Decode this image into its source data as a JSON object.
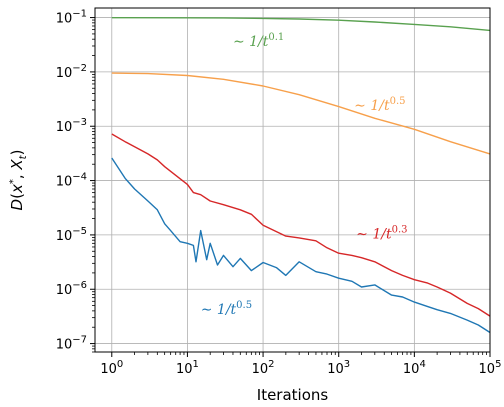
{
  "chart_data": {
    "type": "line",
    "title": "",
    "xlabel": "Iterations",
    "ylabel": "D(x*, X_t)",
    "xscale": "log",
    "yscale": "log",
    "xlim": [
      0.6,
      100000
    ],
    "ylim": [
      7e-08,
      0.15
    ],
    "grid": true,
    "x_ticks": [
      {
        "value": 1,
        "base": "10",
        "exp": "0"
      },
      {
        "value": 10,
        "base": "10",
        "exp": "1"
      },
      {
        "value": 100,
        "base": "10",
        "exp": "2"
      },
      {
        "value": 1000,
        "base": "10",
        "exp": "3"
      },
      {
        "value": 10000,
        "base": "10",
        "exp": "4"
      },
      {
        "value": 100000,
        "base": "10",
        "exp": "5"
      }
    ],
    "y_ticks": [
      {
        "value": 1e-07,
        "base": "10",
        "exp": "−7"
      },
      {
        "value": 1e-06,
        "base": "10",
        "exp": "−6"
      },
      {
        "value": 1e-05,
        "base": "10",
        "exp": "−5"
      },
      {
        "value": 0.0001,
        "base": "10",
        "exp": "−4"
      },
      {
        "value": 0.001,
        "base": "10",
        "exp": "−3"
      },
      {
        "value": 0.01,
        "base": "10",
        "exp": "−2"
      },
      {
        "value": 0.1,
        "base": "10",
        "exp": "−1"
      }
    ],
    "series": [
      {
        "color": "#59a14f",
        "x": [
          1,
          10,
          30,
          100,
          300,
          1000,
          3000,
          10000,
          30000,
          100000
        ],
        "y": [
          0.0995,
          0.0992,
          0.0985,
          0.0965,
          0.094,
          0.0895,
          0.083,
          0.075,
          0.0675,
          0.058
        ]
      },
      {
        "color": "#f7a04b",
        "x": [
          1,
          3,
          10,
          30,
          100,
          300,
          1000,
          3000,
          10000,
          30000,
          100000
        ],
        "y": [
          0.0095,
          0.0093,
          0.0086,
          0.0073,
          0.0055,
          0.0038,
          0.0023,
          0.0014,
          0.00088,
          0.00052,
          0.00031
        ]
      },
      {
        "color": "#d62728",
        "x": [
          1,
          1.5,
          2,
          3,
          4,
          5,
          7,
          10,
          12,
          15,
          20,
          30,
          50,
          70,
          100,
          150,
          200,
          300,
          500,
          700,
          1000,
          1500,
          2000,
          3000,
          5000,
          7000,
          10000,
          15000,
          20000,
          30000,
          50000,
          70000,
          100000
        ],
        "y": [
          0.00072,
          0.00052,
          0.00042,
          0.00031,
          0.00024,
          0.00018,
          0.000125,
          8.5e-05,
          6e-05,
          5.5e-05,
          4.2e-05,
          3.6e-05,
          2.9e-05,
          2.4e-05,
          1.5e-05,
          1.15e-05,
          9.5e-06,
          8.8e-06,
          7.8e-06,
          5.8e-06,
          4.6e-06,
          4.2e-06,
          3.8e-06,
          3.2e-06,
          2.2e-06,
          1.8e-06,
          1.5e-06,
          1.3e-06,
          1.1e-06,
          8.5e-07,
          5.5e-07,
          4.4e-07,
          3.2e-07
        ]
      },
      {
        "color": "#1f77b4",
        "x": [
          1,
          1.5,
          2,
          3,
          4,
          5,
          6,
          8,
          10,
          12,
          13,
          15,
          18,
          20,
          25,
          30,
          40,
          50,
          70,
          100,
          150,
          200,
          300,
          500,
          700,
          1000,
          1500,
          2000,
          3000,
          5000,
          7000,
          10000,
          15000,
          20000,
          30000,
          50000,
          70000,
          100000
        ],
        "y": [
          0.00026,
          0.00011,
          7e-05,
          4.2e-05,
          2.9e-05,
          1.6e-05,
          1.2e-05,
          7.5e-06,
          7e-06,
          6.4e-06,
          3.2e-06,
          1.2e-05,
          3.5e-06,
          7e-06,
          2.8e-06,
          4.2e-06,
          2.6e-06,
          3.7e-06,
          2.2e-06,
          3.1e-06,
          2.5e-06,
          1.8e-06,
          3.2e-06,
          2.1e-06,
          1.9e-06,
          1.6e-06,
          1.4e-06,
          1.1e-06,
          1.2e-06,
          7.8e-07,
          7.2e-07,
          5.8e-07,
          4.8e-07,
          4.2e-07,
          3.6e-07,
          2.7e-07,
          2.2e-07,
          1.6e-07
        ]
      }
    ],
    "annotations": [
      {
        "text_prefix": "∼ 1/",
        "var": "t",
        "exp": "0.1",
        "color": "#59a14f",
        "x": 40,
        "y": 0.03
      },
      {
        "text_prefix": "∼ 1/",
        "var": "t",
        "exp": "0.5",
        "color": "#f7a04b",
        "x": 1600,
        "y": 0.002
      },
      {
        "text_prefix": "∼ 1/",
        "var": "t",
        "exp": "0.3",
        "color": "#d62728",
        "x": 1700,
        "y": 8.5e-06
      },
      {
        "text_prefix": "∼ 1/",
        "var": "t",
        "exp": "0.5",
        "color": "#1f77b4",
        "x": 15,
        "y": 3.5e-07
      }
    ]
  }
}
